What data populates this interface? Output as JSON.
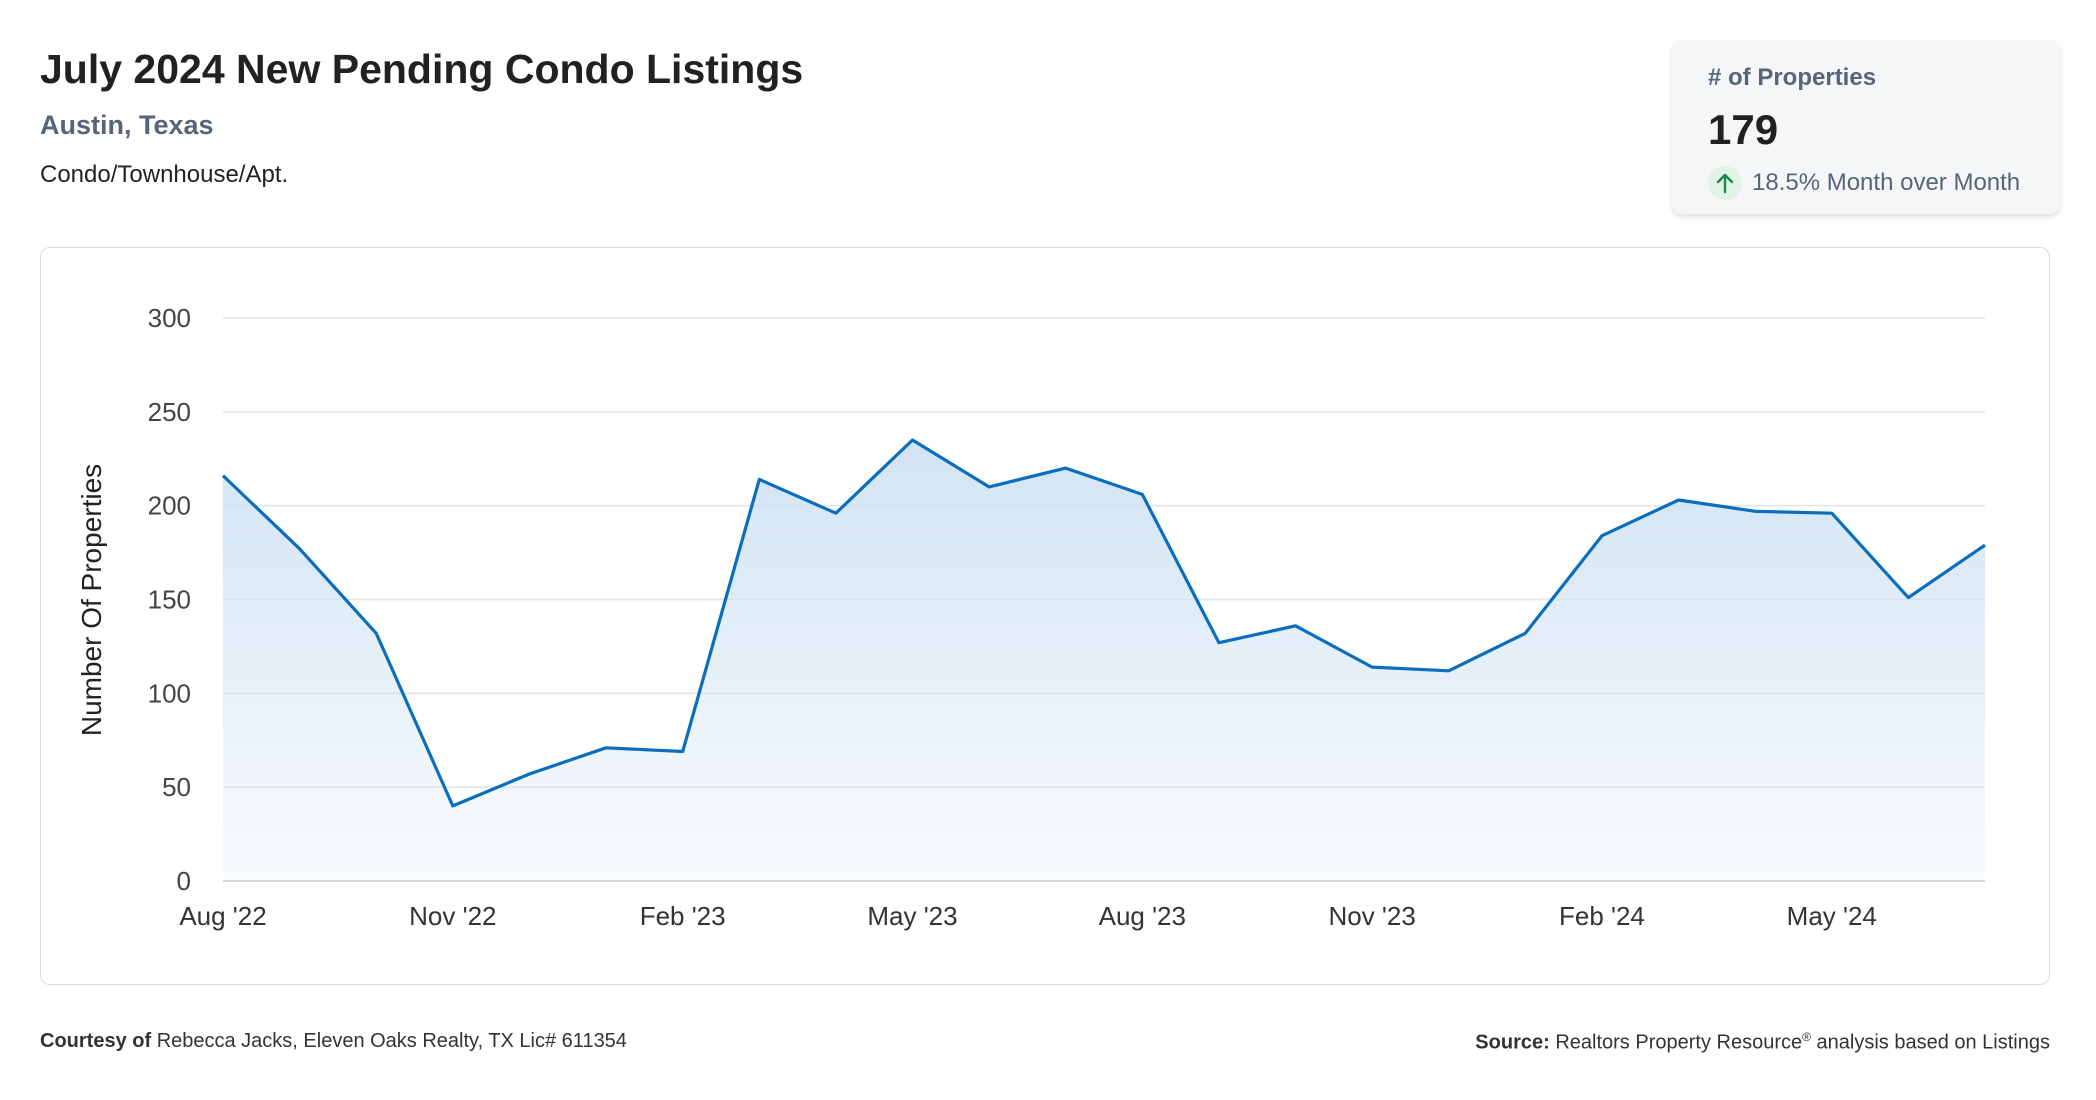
{
  "header": {
    "title": "July 2024 New Pending Condo Listings",
    "location": "Austin, Texas",
    "property_type": "Condo/Townhouse/Apt."
  },
  "stat_card": {
    "label": "# of Properties",
    "value": "179",
    "change": "18.5% Month over Month",
    "direction": "up",
    "accent_color": "#1a8a4a"
  },
  "footer": {
    "courtesy_label": "Courtesy of",
    "courtesy_text": "Rebecca Jacks, Eleven Oaks Realty, TX Lic# 611354",
    "source_label": "Source:",
    "source_text": "Realtors Property Resource",
    "source_mark": "®",
    "source_suffix": " analysis based on Listings"
  },
  "chart_data": {
    "type": "area",
    "x": [
      "Aug '22",
      "Sep '22",
      "Oct '22",
      "Nov '22",
      "Dec '22",
      "Jan '23",
      "Feb '23",
      "Mar '23",
      "Apr '23",
      "May '23",
      "Jun '23",
      "Jul '23",
      "Aug '23",
      "Sep '23",
      "Oct '23",
      "Nov '23",
      "Dec '23",
      "Jan '24",
      "Feb '24",
      "Mar '24",
      "Apr '24",
      "May '24",
      "Jun '24",
      "Jul '24"
    ],
    "xtick_labels": [
      "Aug '22",
      "Nov '22",
      "Feb '23",
      "May '23",
      "Aug '23",
      "Nov '23",
      "Feb '24",
      "May '24"
    ],
    "xtick_index": [
      0,
      3,
      6,
      9,
      12,
      15,
      18,
      21
    ],
    "series": [
      {
        "values": [
          216,
          177,
          132,
          40,
          57,
          71,
          69,
          214,
          196,
          235,
          210,
          220,
          206,
          127,
          136,
          114,
          112,
          132,
          184,
          203,
          197,
          196,
          151,
          179
        ]
      }
    ],
    "ylabel": "Number Of Properties",
    "yticks": [
      0,
      50,
      100,
      150,
      200,
      250,
      300
    ],
    "ylim": [
      0,
      300
    ],
    "grid": true,
    "line_color": "#0a6ebd",
    "fill_color": "#cfe2f3"
  }
}
